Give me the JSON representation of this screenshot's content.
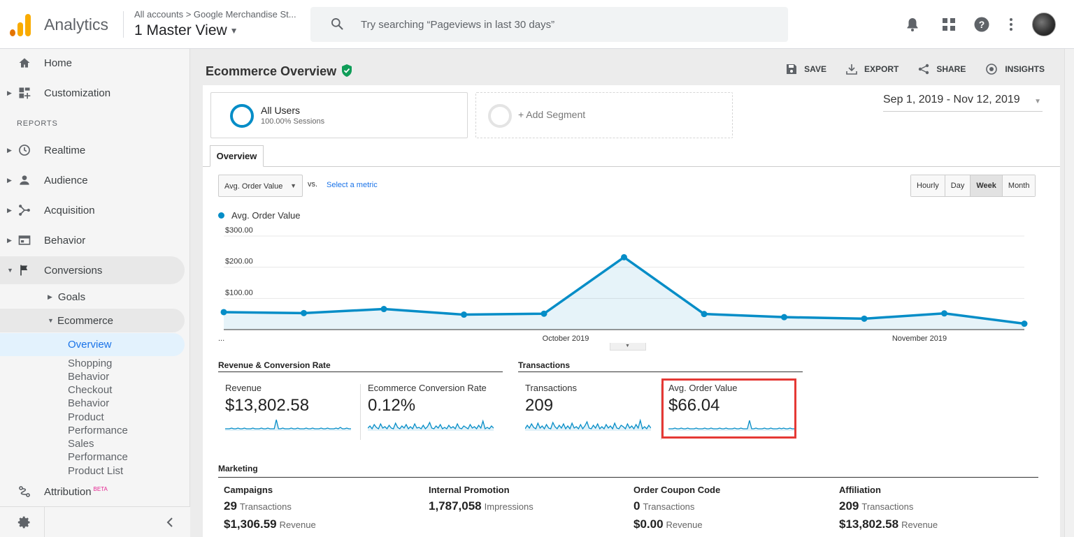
{
  "header": {
    "app_name": "Analytics",
    "breadcrumb": "All accounts > Google Merchandise St...",
    "view_name": "1 Master View",
    "search_placeholder": "Try searching “Pageviews in last 30 days”",
    "icons": [
      "bell-icon",
      "apps-grid-icon",
      "help-icon",
      "more-vert-icon"
    ]
  },
  "sidebar": {
    "reports_heading": "REPORTS",
    "items": [
      {
        "label": "Home",
        "icon": "home-icon"
      },
      {
        "label": "Customization",
        "icon": "dashboard-icon"
      },
      {
        "label": "Realtime",
        "icon": "clock-icon"
      },
      {
        "label": "Audience",
        "icon": "person-icon"
      },
      {
        "label": "Acquisition",
        "icon": "acquisition-icon"
      },
      {
        "label": "Behavior",
        "icon": "behavior-icon"
      },
      {
        "label": "Conversions",
        "icon": "flag-icon"
      }
    ],
    "goals": "Goals",
    "ecommerce": "Ecommerce",
    "active_leaf": "Overview",
    "leaves": [
      "Shopping",
      "Behavior",
      "Checkout",
      "Behavior",
      "Product",
      "Performance",
      "Sales",
      "Performance",
      "Product List"
    ],
    "attribution": "Attribution",
    "attribution_badge": "BETA"
  },
  "page": {
    "title": "Ecommerce Overview",
    "actions": {
      "save": "SAVE",
      "export": "EXPORT",
      "share": "SHARE",
      "insights": "INSIGHTS"
    }
  },
  "segments": {
    "primary_name": "All Users",
    "primary_sub": "100.00% Sessions",
    "add_label": "+ Add Segment"
  },
  "date_range": "Sep 1, 2019 - Nov 12, 2019",
  "tabs": {
    "overview": "Overview"
  },
  "chart_controls": {
    "metric": "Avg. Order Value",
    "vs": "vs.",
    "select_metric": "Select a metric",
    "granularity": [
      "Hourly",
      "Day",
      "Week",
      "Month"
    ],
    "selected_granularity": "Week"
  },
  "chart_data": {
    "type": "area",
    "series": [
      {
        "name": "Avg. Order Value",
        "values": [
          56,
          53,
          66,
          48,
          51,
          232,
          50,
          40,
          35,
          52,
          19
        ]
      }
    ],
    "ytick_labels": [
      "$300.00",
      "$200.00",
      "$100.00"
    ],
    "yticks": [
      300,
      200,
      100
    ],
    "xtick_labels": [
      "...",
      "October 2019",
      "November 2019"
    ],
    "ylim": [
      0,
      300
    ],
    "color": "#058dc7",
    "grid": true
  },
  "scorecards": {
    "group1_title": "Revenue & Conversion Rate",
    "group2_title": "Transactions",
    "cards": [
      {
        "label": "Revenue",
        "value": "$13,802.58"
      },
      {
        "label": "Ecommerce Conversion Rate",
        "value": "0.12%"
      },
      {
        "label": "Transactions",
        "value": "209"
      },
      {
        "label": "Avg. Order Value",
        "value": "$66.04"
      }
    ]
  },
  "marketing": {
    "title": "Marketing",
    "columns": [
      {
        "name": "Campaigns",
        "v1": "29",
        "u1": "Transactions",
        "v2": "$1,306.59",
        "u2": "Revenue"
      },
      {
        "name": "Internal Promotion",
        "v1": "1,787,058",
        "u1": "Impressions",
        "v2": "",
        "u2": ""
      },
      {
        "name": "Order Coupon Code",
        "v1": "0",
        "u1": "Transactions",
        "v2": "$0.00",
        "u2": "Revenue"
      },
      {
        "name": "Affiliation",
        "v1": "209",
        "u1": "Transactions",
        "v2": "$13,802.58",
        "u2": "Revenue"
      }
    ]
  }
}
